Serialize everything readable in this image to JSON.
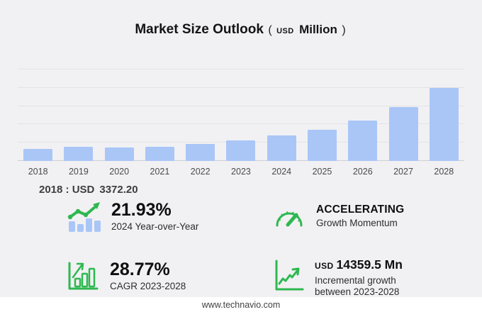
{
  "title": {
    "main": "Market Size Outlook",
    "open_paren": "(",
    "currency": "USD",
    "unit": "Million",
    "close_paren": ")"
  },
  "chart_data": {
    "type": "bar",
    "title": "Market Size Outlook (USD Million)",
    "categories": [
      "2018",
      "2019",
      "2020",
      "2021",
      "2022",
      "2023",
      "2024",
      "2025",
      "2026",
      "2027",
      "2028"
    ],
    "values": [
      3372.2,
      3950,
      3600,
      3950,
      4750,
      5650,
      6890,
      8530,
      11110,
      14680,
      20010
    ],
    "xlabel": "",
    "ylabel": "USD Million",
    "ylim": [
      0,
      25000
    ],
    "gridline_step": 5000,
    "grid": true,
    "legend": false,
    "y_axis_labels_visible": false,
    "bar_color": "#a9c6f7"
  },
  "annotation_2018": {
    "label": "2018 : USD",
    "value": "3372.20"
  },
  "stats": [
    {
      "icon": "bar-line-growth",
      "value": "21.93%",
      "label": "2024 Year-over-Year"
    },
    {
      "icon": "speedometer",
      "value": "ACCELERATING",
      "label": "Growth Momentum"
    },
    {
      "icon": "bar-growth",
      "value": "28.77%",
      "label": "CAGR 2023-2028"
    },
    {
      "icon": "line-growth-axes",
      "value_prefix": "USD",
      "value": "14359.5 Mn",
      "label_line1": "Incremental growth",
      "label_line2": "between 2023-2028"
    }
  ],
  "footer": {
    "url": "www.technavio.com"
  },
  "colors": {
    "background": "#f1f1f3",
    "bar": "#a9c6f7",
    "accent_green": "#2eb850",
    "gridline": "#e3e3e7",
    "baseline": "#cfcfd4",
    "footer_background": "#ffffff",
    "text_dark": "#141414",
    "text_medium": "#3d3d3d"
  }
}
